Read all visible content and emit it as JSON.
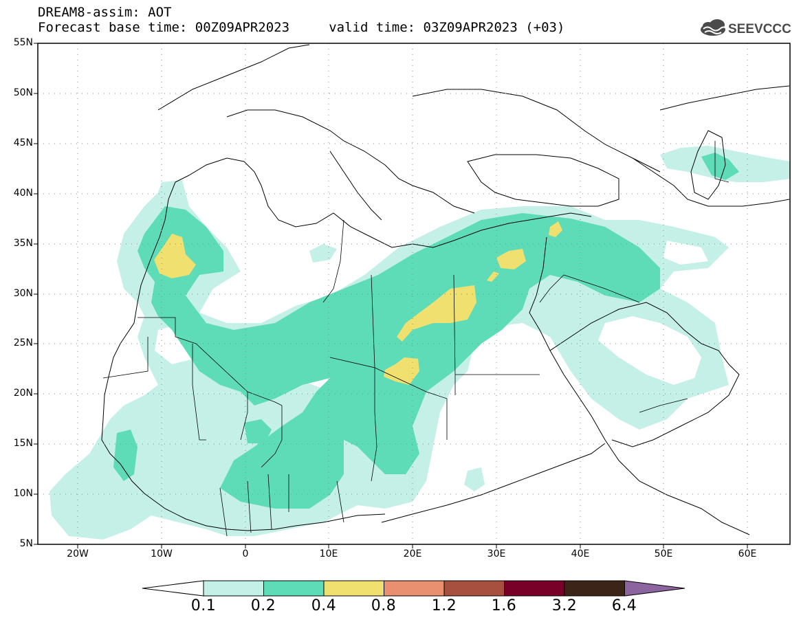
{
  "header": {
    "line1": "DREAM8-assim: AOT",
    "line2": "Forecast base time: 00Z09APR2023     valid time: 03Z09APR2023 (+03)",
    "logo_text": "SEEVCCC"
  },
  "map": {
    "lon_range": [
      -25,
      65
    ],
    "lat_range": [
      5,
      55
    ],
    "lat_ticks": [
      "55N",
      "50N",
      "45N",
      "40N",
      "35N",
      "30N",
      "25N",
      "20N",
      "15N",
      "10N",
      "5N"
    ],
    "lon_ticks": [
      "20W",
      "10W",
      "0",
      "10E",
      "20E",
      "30E",
      "40E",
      "50E",
      "60E"
    ],
    "gridlines": "dotted"
  },
  "colorbar": {
    "labels": [
      "0.1",
      "0.2",
      "0.4",
      "0.8",
      "1.2",
      "1.6",
      "3.2",
      "6.4"
    ],
    "colors": [
      "#ffffff",
      "#c4f0e8",
      "#5edcb8",
      "#f0e070",
      "#e89070",
      "#a85040",
      "#780028",
      "#3c2418",
      "#8c64a0"
    ]
  },
  "colors": {
    "light": "#c4f0e8",
    "mid": "#5edcb8",
    "high": "#f0e070"
  }
}
